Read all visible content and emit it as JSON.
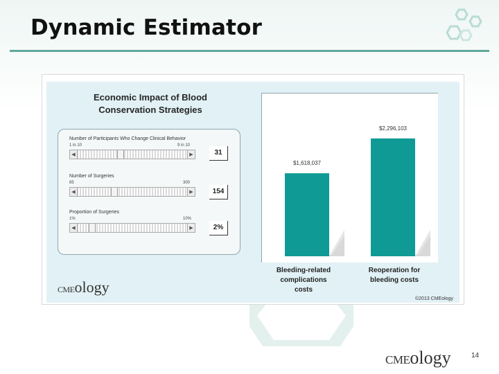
{
  "slide": {
    "title": "Dynamic Estimator",
    "page_number": "14",
    "footer_logo": {
      "cme": "CME",
      "ology": "ology"
    }
  },
  "app": {
    "title_line1": "Economic Impact of Blood",
    "title_line2": "Conservation Strategies",
    "controls": [
      {
        "label": "Number of Participants Who Change Clinical Behavior",
        "min": "1 in 10",
        "max": "9 in 10",
        "value": "31",
        "fraction": 0.38
      },
      {
        "label": "Number of Surgeries",
        "min": "85",
        "max": "300",
        "value": "154",
        "fraction": 0.32
      },
      {
        "label": "Proportion of Surgeries",
        "min": "1%",
        "max": "10%",
        "value": "2%",
        "fraction": 0.11
      }
    ],
    "logo": {
      "cme": "CME",
      "ology": "ology"
    },
    "copyright": "©2013 CMEology"
  },
  "chart_data": {
    "type": "bar",
    "categories": [
      "Bleeding-related complications costs",
      "Reoperation for bleeding costs"
    ],
    "category_lines": [
      [
        "Bleeding-related",
        "complications",
        "costs"
      ],
      [
        "Reoperation for",
        "bleeding costs"
      ]
    ],
    "values": [
      1618037,
      2296103
    ],
    "value_labels": [
      "$1,618,037",
      "$2,296,103"
    ],
    "bar_color": "#0f9a96",
    "shadow_color": "#d9d9d9",
    "ylim": [
      0,
      2700000
    ]
  }
}
